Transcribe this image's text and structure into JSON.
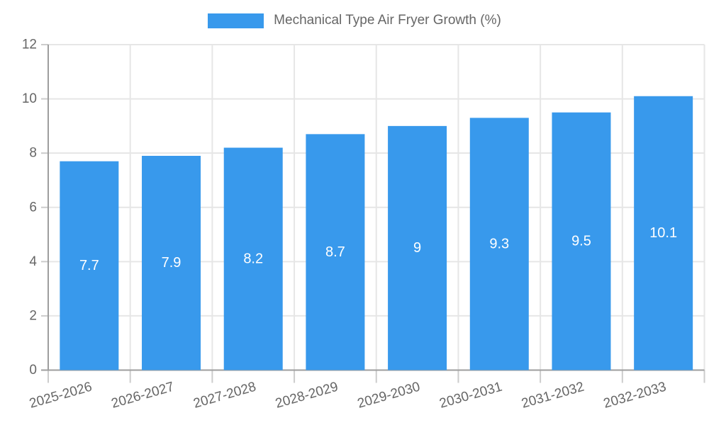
{
  "legend": {
    "label": "Mechanical Type Air Fryer Growth (%)"
  },
  "chart_data": {
    "type": "bar",
    "title": "Mechanical Type Air Fryer Growth (%)",
    "categories": [
      "2025-2026",
      "2026-2027",
      "2027-2028",
      "2028-2029",
      "2029-2030",
      "2030-2031",
      "2031-2032",
      "2032-2033"
    ],
    "series": [
      {
        "name": "Mechanical Type Air Fryer Growth (%)",
        "values": [
          7.7,
          7.9,
          8.2,
          8.7,
          9,
          9.3,
          9.5,
          10.1
        ]
      }
    ],
    "xlabel": "",
    "ylabel": "",
    "ylim": [
      0,
      12
    ],
    "yticks": [
      0,
      2,
      4,
      6,
      8,
      10,
      12
    ],
    "grid": true,
    "legend_position": "top",
    "x_label_rotation_deg": -16,
    "value_labels_position": "center-of-bar",
    "colors": {
      "bar": "#3899EC",
      "grid": "#E6E6E6",
      "axis": "#9E9E9E",
      "tick": "#CCCCCC",
      "text": "#666666",
      "value_label": "#FFFFFF",
      "background": "#FFFFFF"
    }
  }
}
